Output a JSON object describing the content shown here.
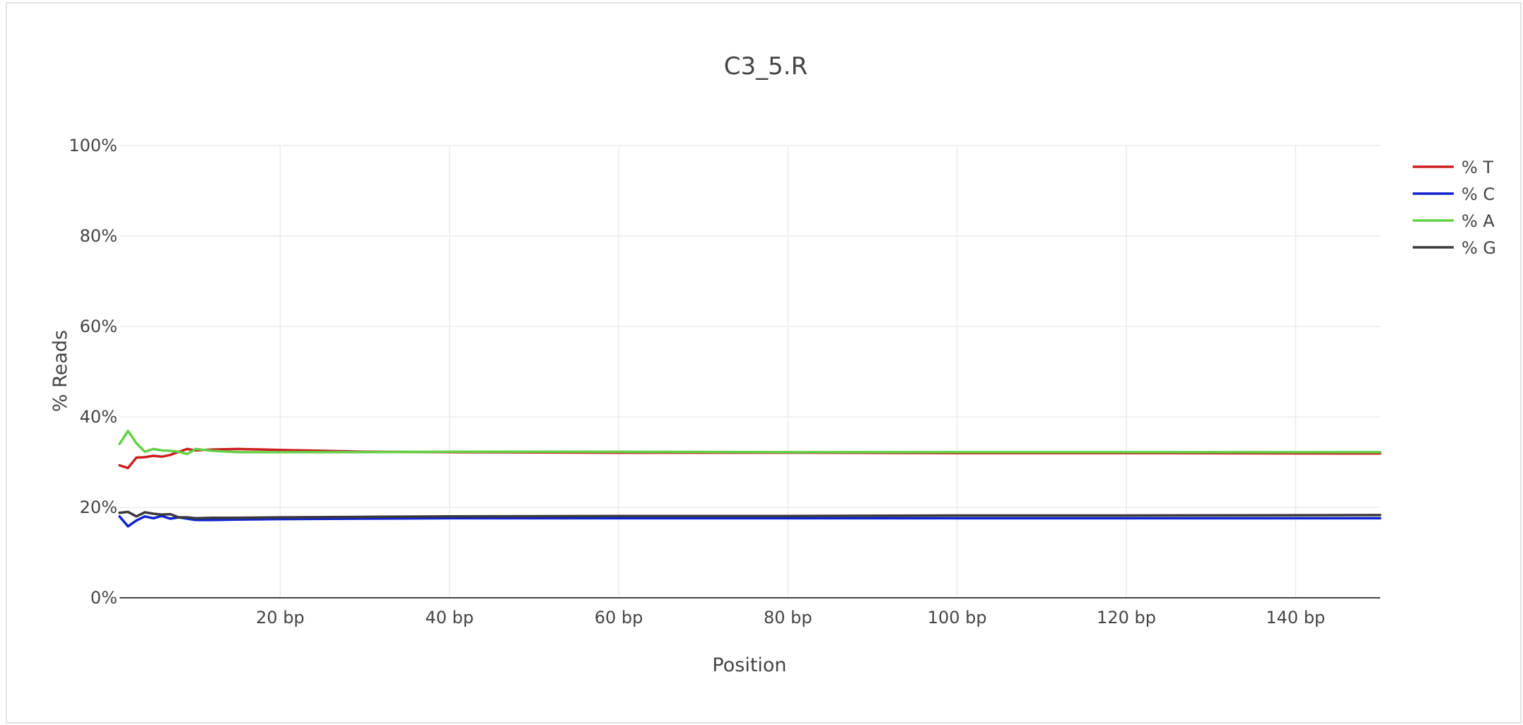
{
  "chart_data": {
    "type": "line",
    "title": "C3_5.R",
    "xlabel": "Position",
    "ylabel": "% Reads",
    "xlim": [
      1,
      150
    ],
    "ylim": [
      0,
      100
    ],
    "x_ticks": [
      20,
      40,
      60,
      80,
      100,
      120,
      140
    ],
    "x_tick_labels": [
      "20 bp",
      "40 bp",
      "60 bp",
      "80 bp",
      "100 bp",
      "120 bp",
      "140 bp"
    ],
    "y_ticks": [
      0,
      20,
      40,
      60,
      80,
      100
    ],
    "y_tick_labels": [
      "0%",
      "20%",
      "40%",
      "60%",
      "80%",
      "100%"
    ],
    "grid": true,
    "legend_position": "top-right",
    "series": [
      {
        "name": "% T",
        "color": "#cc1f1f",
        "x": [
          1,
          2,
          3,
          4,
          5,
          6,
          7,
          8,
          9,
          10,
          12,
          15,
          20,
          30,
          40,
          60,
          80,
          100,
          120,
          150
        ],
        "values": [
          29.3,
          28.7,
          31.0,
          31.1,
          31.4,
          31.2,
          31.6,
          32.3,
          32.9,
          32.6,
          32.8,
          32.9,
          32.7,
          32.3,
          32.2,
          32.1,
          32.1,
          32.0,
          32.0,
          31.9
        ]
      },
      {
        "name": "% C",
        "color": "#0f23cf",
        "x": [
          1,
          2,
          3,
          4,
          5,
          6,
          7,
          8,
          9,
          10,
          12,
          15,
          20,
          30,
          40,
          60,
          80,
          100,
          120,
          150
        ],
        "values": [
          18.0,
          15.8,
          17.1,
          18.0,
          17.6,
          18.1,
          17.5,
          17.8,
          17.5,
          17.2,
          17.2,
          17.3,
          17.4,
          17.5,
          17.6,
          17.6,
          17.6,
          17.6,
          17.6,
          17.6
        ]
      },
      {
        "name": "% A",
        "color": "#62d146",
        "x": [
          1,
          2,
          3,
          4,
          5,
          6,
          7,
          8,
          9,
          10,
          12,
          15,
          20,
          30,
          40,
          60,
          80,
          100,
          120,
          150
        ],
        "values": [
          34.0,
          36.9,
          34.2,
          32.3,
          32.9,
          32.6,
          32.5,
          32.3,
          31.8,
          32.9,
          32.5,
          32.2,
          32.2,
          32.2,
          32.3,
          32.3,
          32.2,
          32.2,
          32.2,
          32.2
        ]
      },
      {
        "name": "% G",
        "color": "#3a3a3a",
        "x": [
          1,
          2,
          3,
          4,
          5,
          6,
          7,
          8,
          9,
          10,
          12,
          15,
          20,
          30,
          40,
          60,
          80,
          100,
          120,
          150
        ],
        "values": [
          18.8,
          19.0,
          18.0,
          18.9,
          18.6,
          18.4,
          18.5,
          17.8,
          17.8,
          17.6,
          17.7,
          17.7,
          17.8,
          17.9,
          18.0,
          18.1,
          18.1,
          18.2,
          18.2,
          18.3
        ]
      }
    ]
  }
}
